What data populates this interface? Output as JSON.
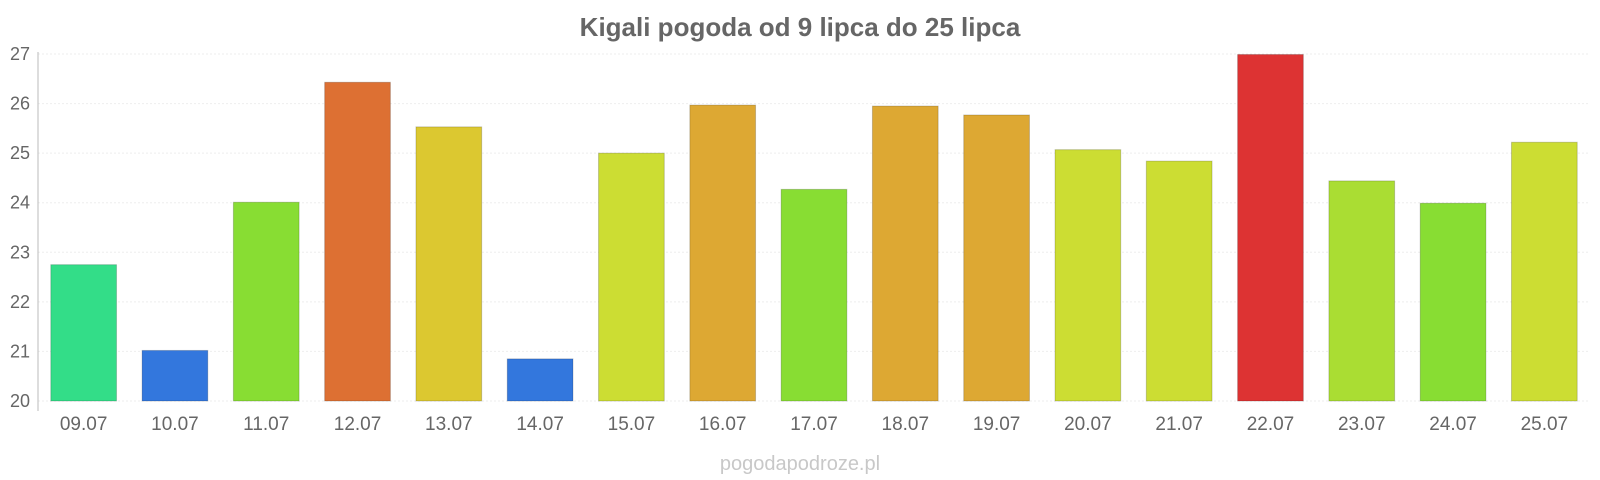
{
  "chart_data": {
    "type": "bar",
    "title": "Kigali pogoda od 9 lipca do 25 lipca",
    "xlabel": "",
    "ylabel": "",
    "categories": [
      "09.07",
      "10.07",
      "11.07",
      "12.07",
      "13.07",
      "14.07",
      "15.07",
      "16.07",
      "17.07",
      "18.07",
      "19.07",
      "20.07",
      "21.07",
      "22.07",
      "23.07",
      "24.07",
      "25.07"
    ],
    "values": [
      22.75,
      21.02,
      24.01,
      26.43,
      25.53,
      20.85,
      25.0,
      25.97,
      24.27,
      25.95,
      25.77,
      25.07,
      24.84,
      26.99,
      24.44,
      23.99,
      25.22
    ],
    "colors": [
      "#33dd88",
      "#3377dd",
      "#88dd33",
      "#dd7033",
      "#dcc830",
      "#3377dd",
      "#ccdd33",
      "#dda833",
      "#88dd33",
      "#dda833",
      "#dda833",
      "#ccdd33",
      "#ccdd33",
      "#dd3333",
      "#aadd33",
      "#88dd33",
      "#ccdd33"
    ],
    "ylim": [
      20,
      27
    ],
    "yticks": [
      20,
      21,
      22,
      23,
      24,
      25,
      26,
      27
    ],
    "grid": true,
    "legend": "none"
  },
  "watermark": "pogodapodroze.pl"
}
